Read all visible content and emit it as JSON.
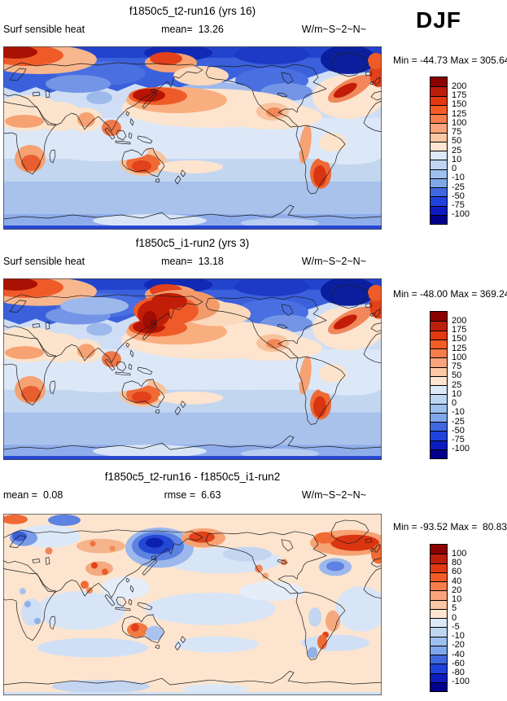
{
  "page": {
    "season_label": "DJF",
    "background": "#ffffff"
  },
  "palette_16": [
    "#8b0000",
    "#bb1f0c",
    "#e23913",
    "#f45c27",
    "#f67d4c",
    "#f9a47c",
    "#fbc7a4",
    "#fde5d2",
    "#dce9f8",
    "#bed6f2",
    "#9dc0ee",
    "#7fa8ea",
    "#3f68e0",
    "#1f41dc",
    "#0d1cc0",
    "#00008b"
  ],
  "panels": [
    {
      "title": "f1850c5_t2-run16 (yrs 16)",
      "left_text": "Surf sensible heat",
      "center_text": "mean=  13.26",
      "right_text": "W/m~S~2~N~",
      "minmax_text": "Min = -44.73 Max = 305.64",
      "colorbar": {
        "labels": [
          "200",
          "175",
          "150",
          "125",
          "100",
          "75",
          "50",
          "25",
          "10",
          "0",
          "-10",
          "-25",
          "-50",
          "-75",
          "-100"
        ],
        "colors": [
          "#8b0000",
          "#bb1f0c",
          "#e23913",
          "#f45c27",
          "#f67d4c",
          "#f9a47c",
          "#fbc7a4",
          "#fde5d2",
          "#dce9f8",
          "#bed6f2",
          "#9dc0ee",
          "#7fa8ea",
          "#3f68e0",
          "#1f41dc",
          "#0d1cc0",
          "#00008b"
        ]
      }
    },
    {
      "title": "f1850c5_i1-run2 (yrs 3)",
      "left_text": "Surf sensible heat",
      "center_text": "mean=  13.18",
      "right_text": "W/m~S~2~N~",
      "minmax_text": "Min = -48.00 Max = 369.24",
      "colorbar": {
        "labels": [
          "200",
          "175",
          "150",
          "125",
          "100",
          "75",
          "50",
          "25",
          "10",
          "0",
          "-10",
          "-25",
          "-50",
          "-75",
          "-100"
        ],
        "colors": [
          "#8b0000",
          "#bb1f0c",
          "#e23913",
          "#f45c27",
          "#f67d4c",
          "#f9a47c",
          "#fbc7a4",
          "#fde5d2",
          "#dce9f8",
          "#bed6f2",
          "#9dc0ee",
          "#7fa8ea",
          "#3f68e0",
          "#1f41dc",
          "#0d1cc0",
          "#00008b"
        ]
      }
    },
    {
      "title": "f1850c5_t2-run16 - f1850c5_i1-run2",
      "left_text": "mean =  0.08",
      "center_text": "rmse =  6.63",
      "right_text": "W/m~S~2~N~",
      "minmax_text": "Min = -93.52 Max =  80.83",
      "colorbar": {
        "labels": [
          "100",
          "80",
          "60",
          "40",
          "20",
          "10",
          "5",
          "0",
          "-5",
          "-10",
          "-20",
          "-40",
          "-60",
          "-80",
          "-100"
        ],
        "colors": [
          "#8b0000",
          "#bb1f0c",
          "#e23913",
          "#f45c27",
          "#f67d4c",
          "#f9a47c",
          "#fbc7a4",
          "#fde5d2",
          "#dce9f8",
          "#bed6f2",
          "#9dc0ee",
          "#7fa8ea",
          "#3f68e0",
          "#1f41dc",
          "#0d1cc0",
          "#00008b"
        ]
      }
    }
  ],
  "chart_data": [
    {
      "type": "heatmap",
      "panel": "top",
      "title": "f1850c5_t2-run16 (yrs 16)",
      "variable": "Surf sensible heat",
      "season": "DJF",
      "units_label": "W/m~S~2~N~",
      "mean": 13.26,
      "min": -44.73,
      "max": 305.64,
      "contour_levels": [
        -100,
        -75,
        -50,
        -25,
        -10,
        0,
        10,
        25,
        50,
        75,
        100,
        125,
        150,
        175,
        200
      ],
      "palette": [
        "#8b0000",
        "#bb1f0c",
        "#e23913",
        "#f45c27",
        "#f67d4c",
        "#f9a47c",
        "#fbc7a4",
        "#fde5d2",
        "#dce9f8",
        "#bed6f2",
        "#9dc0ee",
        "#7fa8ea",
        "#3f68e0",
        "#1f41dc",
        "#0d1cc0",
        "#00008b"
      ],
      "map_style": "global lat-lon filled contours, Pacific-centered, coastlines overlaid, legend at right"
    },
    {
      "type": "heatmap",
      "panel": "middle",
      "title": "f1850c5_i1-run2 (yrs 3)",
      "variable": "Surf sensible heat",
      "season": "DJF",
      "units_label": "W/m~S~2~N~",
      "mean": 13.18,
      "min": -48.0,
      "max": 369.24,
      "contour_levels": [
        -100,
        -75,
        -50,
        -25,
        -10,
        0,
        10,
        25,
        50,
        75,
        100,
        125,
        150,
        175,
        200
      ],
      "palette": [
        "#8b0000",
        "#bb1f0c",
        "#e23913",
        "#f45c27",
        "#f67d4c",
        "#f9a47c",
        "#fbc7a4",
        "#fde5d2",
        "#dce9f8",
        "#bed6f2",
        "#9dc0ee",
        "#7fa8ea",
        "#3f68e0",
        "#1f41dc",
        "#0d1cc0",
        "#00008b"
      ],
      "map_style": "global lat-lon filled contours, Pacific-centered, coastlines overlaid, legend at right"
    },
    {
      "type": "heatmap",
      "panel": "bottom",
      "title": "f1850c5_t2-run16 - f1850c5_i1-run2",
      "season": "DJF",
      "units_label": "W/m~S~2~N~",
      "mean": 0.08,
      "rmse": 6.63,
      "min": -93.52,
      "max": 80.83,
      "contour_levels": [
        -100,
        -80,
        -60,
        -40,
        -20,
        -10,
        -5,
        0,
        5,
        10,
        20,
        40,
        60,
        80,
        100
      ],
      "palette": [
        "#8b0000",
        "#bb1f0c",
        "#e23913",
        "#f45c27",
        "#f67d4c",
        "#f9a47c",
        "#fbc7a4",
        "#fde5d2",
        "#dce9f8",
        "#bed6f2",
        "#9dc0ee",
        "#7fa8ea",
        "#3f68e0",
        "#1f41dc",
        "#0d1cc0",
        "#00008b"
      ],
      "map_style": "difference map: mostly pale, strong blue NW Pacific, strong red Bering Sea and North Atlantic"
    }
  ]
}
